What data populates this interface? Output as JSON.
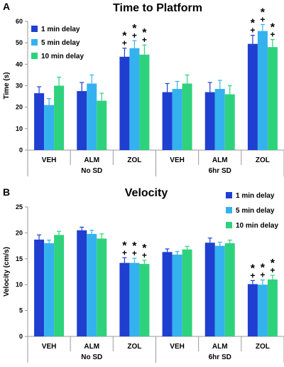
{
  "colors": {
    "1 min delay": "#1f3fd0",
    "5 min delay": "#34b2ef",
    "10 min delay": "#2fd27c",
    "axis": "#999999",
    "text": "#000000"
  },
  "chart_data": [
    {
      "type": "bar",
      "panel": "A",
      "title": "Time to Platform",
      "xlabel": "",
      "ylabel": "Time (s)",
      "ylim": [
        0,
        60
      ],
      "ytick_step": 10,
      "ytick_labels": [
        "0",
        "10",
        "20",
        "30",
        "40",
        "50",
        "60"
      ],
      "grid": false,
      "legend_position": "top-left",
      "categories": [
        "VEH",
        "ALM",
        "ZOL",
        "VEH",
        "ALM",
        "ZOL"
      ],
      "groups": [
        {
          "label": "No SD",
          "categories": [
            0,
            1,
            2
          ]
        },
        {
          "label": "6hr SD",
          "categories": [
            3,
            4,
            5
          ]
        }
      ],
      "series": [
        {
          "name": "1 min delay",
          "values": [
            26.5,
            27.5,
            43.5,
            27.0,
            27.0,
            49.5
          ],
          "errors": [
            3.0,
            4.0,
            4.0,
            4.0,
            4.5,
            4.0
          ]
        },
        {
          "name": "5 min delay",
          "values": [
            21.0,
            31.0,
            47.5,
            28.5,
            28.5,
            55.5
          ],
          "errors": [
            3.0,
            4.0,
            3.5,
            3.5,
            4.0,
            3.0
          ]
        },
        {
          "name": "10 min delay",
          "values": [
            30.0,
            23.0,
            44.5,
            31.0,
            26.0,
            48.0
          ],
          "errors": [
            4.0,
            3.5,
            4.5,
            4.0,
            4.0,
            3.5
          ]
        }
      ],
      "annotations": [
        {
          "category": 2,
          "series": 0,
          "symbols": [
            "*",
            "+"
          ]
        },
        {
          "category": 2,
          "series": 1,
          "symbols": [
            "*",
            "+"
          ]
        },
        {
          "category": 2,
          "series": 2,
          "symbols": [
            "*",
            "+"
          ]
        },
        {
          "category": 5,
          "series": 0,
          "symbols": [
            "*",
            "+"
          ]
        },
        {
          "category": 5,
          "series": 1,
          "symbols": [
            "*",
            "+"
          ]
        },
        {
          "category": 5,
          "series": 2,
          "symbols": [
            "*",
            "+"
          ]
        }
      ]
    },
    {
      "type": "bar",
      "panel": "B",
      "title": "Velocity",
      "xlabel": "",
      "ylabel": "Velocity (cm/s)",
      "ylim": [
        0,
        25
      ],
      "ytick_step": 5,
      "ytick_labels": [
        "0",
        "5",
        "10",
        "15",
        "20",
        "25"
      ],
      "grid": false,
      "legend_position": "top-right",
      "categories": [
        "VEH",
        "ALM",
        "ZOL",
        "VEH",
        "ALM",
        "ZOL"
      ],
      "groups": [
        {
          "label": "No SD",
          "categories": [
            0,
            1,
            2
          ]
        },
        {
          "label": "6hr SD",
          "categories": [
            3,
            4,
            5
          ]
        }
      ],
      "series": [
        {
          "name": "1 min delay",
          "values": [
            18.7,
            20.5,
            14.2,
            16.3,
            18.1,
            10.1
          ],
          "errors": [
            0.9,
            0.6,
            1.0,
            0.6,
            0.9,
            0.7
          ]
        },
        {
          "name": "5 min delay",
          "values": [
            18.0,
            19.8,
            14.2,
            15.8,
            17.5,
            10.0
          ],
          "errors": [
            0.6,
            0.7,
            0.9,
            0.6,
            0.7,
            0.9
          ]
        },
        {
          "name": "10 min delay",
          "values": [
            19.6,
            18.9,
            14.0,
            16.8,
            18.0,
            11.0
          ],
          "errors": [
            0.7,
            0.9,
            0.7,
            0.6,
            0.6,
            0.8
          ]
        }
      ],
      "annotations": [
        {
          "category": 2,
          "series": 0,
          "symbols": [
            "*",
            "+"
          ]
        },
        {
          "category": 2,
          "series": 1,
          "symbols": [
            "*",
            "+"
          ]
        },
        {
          "category": 2,
          "series": 2,
          "symbols": [
            "*",
            "+"
          ]
        },
        {
          "category": 5,
          "series": 0,
          "symbols": [
            "*",
            "+"
          ]
        },
        {
          "category": 5,
          "series": 1,
          "symbols": [
            "*",
            "+"
          ]
        },
        {
          "category": 5,
          "series": 2,
          "symbols": [
            "*",
            "+"
          ]
        }
      ]
    }
  ]
}
